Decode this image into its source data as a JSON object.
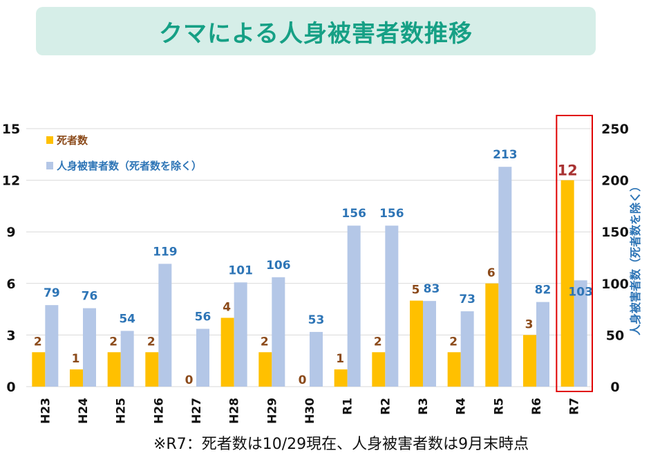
{
  "title": "クマによる人身被害者数推移",
  "footnote": "※R7：死者数は10/29現在、人身被害者数は9月末時点",
  "colors": {
    "deaths": "#ffc000",
    "injuries": "#b4c7e7",
    "death_label": "#8b4a1a",
    "injury_label": "#2e75b6",
    "highlight": "#e00000",
    "r7_label": "#a83232"
  },
  "chart_data": {
    "type": "bar",
    "categories": [
      "H23",
      "H24",
      "H25",
      "H26",
      "H27",
      "H28",
      "H29",
      "H30",
      "R1",
      "R2",
      "R3",
      "R4",
      "R5",
      "R6",
      "R7"
    ],
    "series": [
      {
        "name": "死者数",
        "axis": "left",
        "values": [
          2,
          1,
          2,
          2,
          0,
          4,
          2,
          0,
          1,
          2,
          5,
          2,
          6,
          3,
          12
        ]
      },
      {
        "name": "人身被害者数（死者数を除く）",
        "axis": "right",
        "values": [
          79,
          76,
          54,
          119,
          56,
          101,
          106,
          53,
          156,
          156,
          83,
          73,
          213,
          82,
          103
        ]
      }
    ],
    "left_axis": {
      "ylim": [
        0,
        15
      ],
      "ticks": [
        "0",
        "3",
        "6",
        "9",
        "12",
        "15"
      ]
    },
    "right_axis": {
      "ylim": [
        0,
        250
      ],
      "ticks": [
        "0",
        "50",
        "100",
        "150",
        "200",
        "250"
      ],
      "label": "人身被害者数（死者数を除く）"
    },
    "legend": {
      "placement": "top-left",
      "entries": [
        "死者数",
        "人身被害者数（死者数を除く）"
      ]
    },
    "highlighted_category": "R7",
    "grid": true
  }
}
